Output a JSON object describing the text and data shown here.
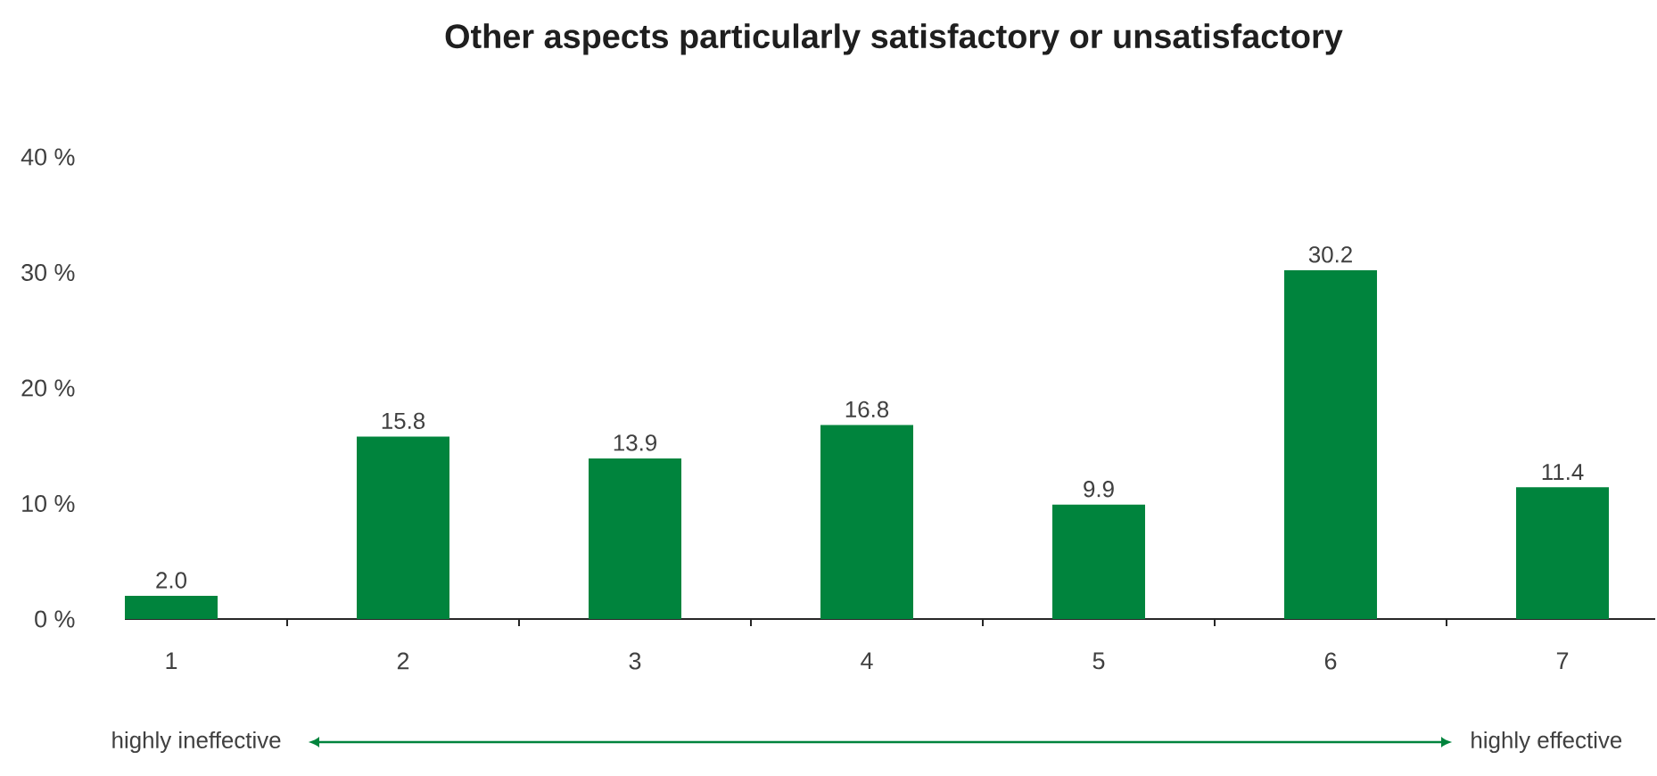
{
  "chart_data": {
    "type": "bar",
    "title": "Other aspects particularly satisfactory or unsatisfactory",
    "categories": [
      "1",
      "2",
      "3",
      "4",
      "5",
      "6",
      "7"
    ],
    "values": [
      2.0,
      15.8,
      13.9,
      16.8,
      9.9,
      30.2,
      11.4
    ],
    "color": "#00843d",
    "value_labels": [
      "2.0",
      "15.8",
      "13.9",
      "16.8",
      "9.9",
      "30.2",
      "11.4"
    ],
    "ylim": [
      0,
      40
    ],
    "yticks": [
      {
        "value": 0,
        "label": "0 %"
      },
      {
        "value": 10,
        "label": "10 %"
      },
      {
        "value": 20,
        "label": "20 %"
      },
      {
        "value": 30,
        "label": "30 %"
      },
      {
        "value": 40,
        "label": "40 %"
      }
    ],
    "annotations": [
      "highly ineffective",
      "highly effective"
    ]
  }
}
